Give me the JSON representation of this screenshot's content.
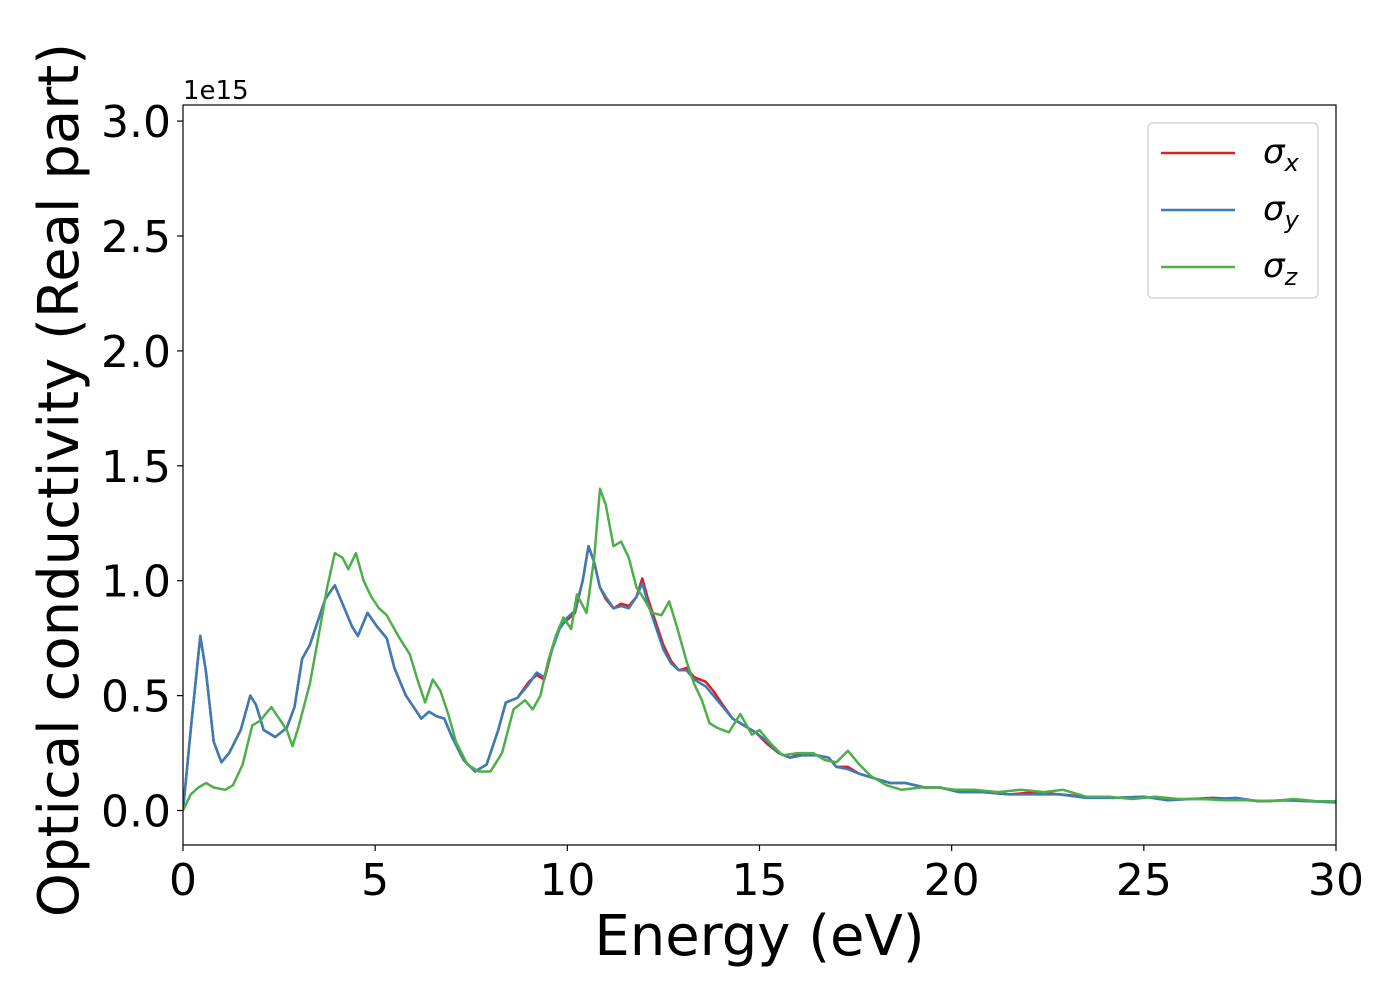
{
  "chart_data": {
    "type": "line",
    "title": "",
    "xlabel": "Energy (eV)",
    "ylabel": "Optical conductivity (Real part)",
    "y_offset_label": "1e15",
    "y_scale_factor": 1000000000000000.0,
    "xlim": [
      0,
      30
    ],
    "ylim": [
      -0.15,
      3.07
    ],
    "x_ticks": [
      0,
      5,
      10,
      15,
      20,
      25,
      30
    ],
    "x_tick_labels": [
      "0",
      "5",
      "10",
      "15",
      "20",
      "25",
      "30"
    ],
    "y_ticks": [
      0.0,
      0.5,
      1.0,
      1.5,
      2.0,
      2.5,
      3.0
    ],
    "y_tick_labels": [
      "0.0",
      "0.5",
      "1.0",
      "1.5",
      "2.0",
      "2.5",
      "3.0"
    ],
    "grid": false,
    "legend_position": "top-right",
    "series": [
      {
        "name": "σx",
        "label_base": "σ",
        "label_sub": "x",
        "color": "#e41a1c",
        "points": [
          [
            0,
            0
          ],
          [
            0.2,
            0.35
          ],
          [
            0.45,
            0.76
          ],
          [
            0.6,
            0.6
          ],
          [
            0.8,
            0.3
          ],
          [
            1.0,
            0.21
          ],
          [
            1.2,
            0.25
          ],
          [
            1.5,
            0.35
          ],
          [
            1.75,
            0.5
          ],
          [
            1.9,
            0.46
          ],
          [
            2.1,
            0.35
          ],
          [
            2.4,
            0.32
          ],
          [
            2.7,
            0.36
          ],
          [
            2.9,
            0.45
          ],
          [
            3.1,
            0.66
          ],
          [
            3.3,
            0.72
          ],
          [
            3.5,
            0.82
          ],
          [
            3.7,
            0.92
          ],
          [
            3.95,
            0.98
          ],
          [
            4.15,
            0.9
          ],
          [
            4.4,
            0.8
          ],
          [
            4.55,
            0.76
          ],
          [
            4.8,
            0.86
          ],
          [
            5.05,
            0.8
          ],
          [
            5.3,
            0.75
          ],
          [
            5.5,
            0.62
          ],
          [
            5.8,
            0.5
          ],
          [
            6.0,
            0.45
          ],
          [
            6.2,
            0.4
          ],
          [
            6.4,
            0.43
          ],
          [
            6.6,
            0.41
          ],
          [
            6.8,
            0.4
          ],
          [
            7.0,
            0.32
          ],
          [
            7.3,
            0.22
          ],
          [
            7.6,
            0.17
          ],
          [
            7.9,
            0.2
          ],
          [
            8.2,
            0.35
          ],
          [
            8.4,
            0.47
          ],
          [
            8.7,
            0.49
          ],
          [
            9.0,
            0.56
          ],
          [
            9.2,
            0.59
          ],
          [
            9.4,
            0.57
          ],
          [
            9.6,
            0.7
          ],
          [
            9.8,
            0.8
          ],
          [
            10.0,
            0.83
          ],
          [
            10.2,
            0.86
          ],
          [
            10.4,
            1.0
          ],
          [
            10.55,
            1.15
          ],
          [
            10.7,
            1.08
          ],
          [
            10.85,
            0.97
          ],
          [
            11.0,
            0.92
          ],
          [
            11.2,
            0.88
          ],
          [
            11.4,
            0.9
          ],
          [
            11.6,
            0.89
          ],
          [
            11.8,
            0.93
          ],
          [
            11.95,
            1.01
          ],
          [
            12.1,
            0.92
          ],
          [
            12.3,
            0.82
          ],
          [
            12.5,
            0.72
          ],
          [
            12.7,
            0.65
          ],
          [
            12.9,
            0.61
          ],
          [
            13.1,
            0.62
          ],
          [
            13.3,
            0.58
          ],
          [
            13.6,
            0.56
          ],
          [
            13.8,
            0.52
          ],
          [
            14.0,
            0.47
          ],
          [
            14.3,
            0.4
          ],
          [
            14.6,
            0.37
          ],
          [
            14.9,
            0.34
          ],
          [
            15.2,
            0.29
          ],
          [
            15.5,
            0.25
          ],
          [
            15.8,
            0.23
          ],
          [
            16.1,
            0.25
          ],
          [
            16.5,
            0.24
          ],
          [
            16.8,
            0.23
          ],
          [
            17.0,
            0.19
          ],
          [
            17.3,
            0.19
          ],
          [
            17.6,
            0.16
          ],
          [
            18.0,
            0.14
          ],
          [
            18.4,
            0.12
          ],
          [
            18.8,
            0.12
          ],
          [
            19.3,
            0.1
          ],
          [
            19.7,
            0.1
          ],
          [
            20.2,
            0.08
          ],
          [
            20.8,
            0.08
          ],
          [
            21.5,
            0.07
          ],
          [
            22.2,
            0.08
          ],
          [
            22.8,
            0.07
          ],
          [
            23.5,
            0.06
          ],
          [
            24.2,
            0.055
          ],
          [
            25.0,
            0.06
          ],
          [
            25.6,
            0.045
          ],
          [
            26.2,
            0.05
          ],
          [
            26.8,
            0.055
          ],
          [
            27.4,
            0.05
          ],
          [
            28.0,
            0.04
          ],
          [
            28.7,
            0.045
          ],
          [
            29.3,
            0.04
          ],
          [
            30,
            0.04
          ]
        ]
      },
      {
        "name": "σy",
        "label_base": "σ",
        "label_sub": "y",
        "color": "#377eb8",
        "points": [
          [
            0,
            0
          ],
          [
            0.2,
            0.35
          ],
          [
            0.45,
            0.76
          ],
          [
            0.6,
            0.6
          ],
          [
            0.8,
            0.3
          ],
          [
            1.0,
            0.21
          ],
          [
            1.2,
            0.25
          ],
          [
            1.5,
            0.35
          ],
          [
            1.75,
            0.5
          ],
          [
            1.9,
            0.46
          ],
          [
            2.1,
            0.35
          ],
          [
            2.4,
            0.32
          ],
          [
            2.7,
            0.36
          ],
          [
            2.9,
            0.45
          ],
          [
            3.1,
            0.66
          ],
          [
            3.3,
            0.72
          ],
          [
            3.5,
            0.82
          ],
          [
            3.7,
            0.92
          ],
          [
            3.95,
            0.98
          ],
          [
            4.15,
            0.9
          ],
          [
            4.4,
            0.8
          ],
          [
            4.55,
            0.76
          ],
          [
            4.8,
            0.86
          ],
          [
            5.05,
            0.8
          ],
          [
            5.3,
            0.75
          ],
          [
            5.5,
            0.62
          ],
          [
            5.8,
            0.5
          ],
          [
            6.0,
            0.45
          ],
          [
            6.2,
            0.4
          ],
          [
            6.4,
            0.43
          ],
          [
            6.6,
            0.41
          ],
          [
            6.8,
            0.4
          ],
          [
            7.0,
            0.32
          ],
          [
            7.3,
            0.22
          ],
          [
            7.6,
            0.17
          ],
          [
            7.9,
            0.2
          ],
          [
            8.2,
            0.35
          ],
          [
            8.4,
            0.47
          ],
          [
            8.7,
            0.49
          ],
          [
            9.0,
            0.55
          ],
          [
            9.2,
            0.6
          ],
          [
            9.4,
            0.58
          ],
          [
            9.6,
            0.7
          ],
          [
            9.8,
            0.79
          ],
          [
            10.0,
            0.84
          ],
          [
            10.2,
            0.87
          ],
          [
            10.4,
            1.0
          ],
          [
            10.55,
            1.15
          ],
          [
            10.7,
            1.08
          ],
          [
            10.85,
            0.97
          ],
          [
            11.0,
            0.93
          ],
          [
            11.2,
            0.88
          ],
          [
            11.4,
            0.89
          ],
          [
            11.6,
            0.88
          ],
          [
            11.8,
            0.93
          ],
          [
            11.95,
            0.99
          ],
          [
            12.1,
            0.9
          ],
          [
            12.3,
            0.8
          ],
          [
            12.5,
            0.7
          ],
          [
            12.7,
            0.64
          ],
          [
            12.9,
            0.61
          ],
          [
            13.1,
            0.61
          ],
          [
            13.3,
            0.57
          ],
          [
            13.6,
            0.54
          ],
          [
            13.8,
            0.5
          ],
          [
            14.0,
            0.46
          ],
          [
            14.3,
            0.4
          ],
          [
            14.6,
            0.37
          ],
          [
            14.9,
            0.34
          ],
          [
            15.2,
            0.3
          ],
          [
            15.5,
            0.25
          ],
          [
            15.8,
            0.23
          ],
          [
            16.1,
            0.24
          ],
          [
            16.5,
            0.24
          ],
          [
            16.8,
            0.23
          ],
          [
            17.0,
            0.19
          ],
          [
            17.3,
            0.18
          ],
          [
            17.6,
            0.16
          ],
          [
            18.0,
            0.14
          ],
          [
            18.4,
            0.12
          ],
          [
            18.8,
            0.12
          ],
          [
            19.3,
            0.1
          ],
          [
            19.7,
            0.1
          ],
          [
            20.2,
            0.08
          ],
          [
            20.8,
            0.08
          ],
          [
            21.5,
            0.07
          ],
          [
            22.2,
            0.07
          ],
          [
            22.8,
            0.07
          ],
          [
            23.5,
            0.055
          ],
          [
            24.2,
            0.055
          ],
          [
            25.0,
            0.06
          ],
          [
            25.6,
            0.045
          ],
          [
            26.2,
            0.05
          ],
          [
            26.8,
            0.05
          ],
          [
            27.4,
            0.055
          ],
          [
            28.0,
            0.04
          ],
          [
            28.7,
            0.045
          ],
          [
            29.3,
            0.04
          ],
          [
            30,
            0.035
          ]
        ]
      },
      {
        "name": "σz",
        "label_base": "σ",
        "label_sub": "z",
        "color": "#4daf4a",
        "points": [
          [
            0,
            0
          ],
          [
            0.2,
            0.07
          ],
          [
            0.4,
            0.1
          ],
          [
            0.6,
            0.12
          ],
          [
            0.8,
            0.1
          ],
          [
            1.1,
            0.09
          ],
          [
            1.3,
            0.11
          ],
          [
            1.55,
            0.2
          ],
          [
            1.8,
            0.37
          ],
          [
            2.0,
            0.39
          ],
          [
            2.3,
            0.45
          ],
          [
            2.5,
            0.4
          ],
          [
            2.7,
            0.35
          ],
          [
            2.85,
            0.28
          ],
          [
            3.0,
            0.36
          ],
          [
            3.3,
            0.55
          ],
          [
            3.55,
            0.78
          ],
          [
            3.75,
            0.97
          ],
          [
            3.95,
            1.12
          ],
          [
            4.15,
            1.1
          ],
          [
            4.3,
            1.05
          ],
          [
            4.5,
            1.12
          ],
          [
            4.7,
            1.0
          ],
          [
            4.9,
            0.93
          ],
          [
            5.1,
            0.88
          ],
          [
            5.3,
            0.85
          ],
          [
            5.6,
            0.76
          ],
          [
            5.9,
            0.68
          ],
          [
            6.1,
            0.57
          ],
          [
            6.3,
            0.47
          ],
          [
            6.5,
            0.57
          ],
          [
            6.7,
            0.52
          ],
          [
            6.9,
            0.42
          ],
          [
            7.1,
            0.3
          ],
          [
            7.4,
            0.2
          ],
          [
            7.7,
            0.17
          ],
          [
            8.0,
            0.17
          ],
          [
            8.3,
            0.25
          ],
          [
            8.6,
            0.44
          ],
          [
            8.9,
            0.48
          ],
          [
            9.1,
            0.44
          ],
          [
            9.3,
            0.5
          ],
          [
            9.5,
            0.65
          ],
          [
            9.7,
            0.76
          ],
          [
            9.9,
            0.84
          ],
          [
            10.1,
            0.79
          ],
          [
            10.25,
            0.94
          ],
          [
            10.5,
            0.86
          ],
          [
            10.7,
            1.1
          ],
          [
            10.85,
            1.4
          ],
          [
            11.0,
            1.33
          ],
          [
            11.2,
            1.15
          ],
          [
            11.4,
            1.17
          ],
          [
            11.6,
            1.1
          ],
          [
            11.8,
            0.97
          ],
          [
            12.0,
            0.92
          ],
          [
            12.2,
            0.86
          ],
          [
            12.45,
            0.85
          ],
          [
            12.65,
            0.91
          ],
          [
            12.85,
            0.8
          ],
          [
            13.1,
            0.65
          ],
          [
            13.3,
            0.55
          ],
          [
            13.5,
            0.48
          ],
          [
            13.7,
            0.38
          ],
          [
            13.9,
            0.36
          ],
          [
            14.2,
            0.34
          ],
          [
            14.5,
            0.42
          ],
          [
            14.8,
            0.33
          ],
          [
            15.0,
            0.35
          ],
          [
            15.3,
            0.29
          ],
          [
            15.6,
            0.24
          ],
          [
            16.0,
            0.25
          ],
          [
            16.4,
            0.25
          ],
          [
            16.7,
            0.22
          ],
          [
            17.0,
            0.21
          ],
          [
            17.3,
            0.26
          ],
          [
            17.6,
            0.2
          ],
          [
            17.9,
            0.15
          ],
          [
            18.3,
            0.11
          ],
          [
            18.7,
            0.09
          ],
          [
            19.2,
            0.1
          ],
          [
            19.6,
            0.1
          ],
          [
            20.1,
            0.09
          ],
          [
            20.6,
            0.09
          ],
          [
            21.2,
            0.08
          ],
          [
            21.8,
            0.09
          ],
          [
            22.4,
            0.08
          ],
          [
            22.9,
            0.09
          ],
          [
            23.5,
            0.06
          ],
          [
            24.1,
            0.06
          ],
          [
            24.7,
            0.05
          ],
          [
            25.3,
            0.06
          ],
          [
            25.9,
            0.05
          ],
          [
            26.5,
            0.05
          ],
          [
            27.1,
            0.045
          ],
          [
            27.7,
            0.045
          ],
          [
            28.3,
            0.04
          ],
          [
            28.9,
            0.05
          ],
          [
            29.5,
            0.04
          ],
          [
            30,
            0.04
          ]
        ]
      }
    ]
  }
}
